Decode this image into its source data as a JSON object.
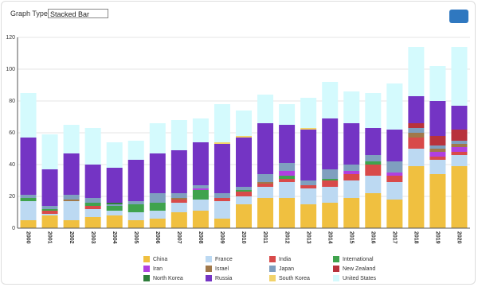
{
  "controls": {
    "graph_type_label": "Graph Type",
    "graph_type_value": "Stacked Bar"
  },
  "chart_data": {
    "type": "stacked_bar",
    "categories": [
      "2000",
      "2001",
      "2002",
      "2003",
      "2004",
      "2005",
      "2006",
      "2007",
      "2008",
      "2009",
      "2010",
      "2011",
      "2012",
      "2013",
      "2014",
      "2015",
      "2016",
      "2017",
      "2018",
      "2019",
      "2020"
    ],
    "series": [
      {
        "name": "China",
        "color": "#f0c040",
        "values": [
          5,
          8,
          5,
          7,
          8,
          5,
          6,
          10,
          11,
          6,
          15,
          19,
          19,
          15,
          16,
          19,
          22,
          18,
          39,
          34,
          39
        ]
      },
      {
        "name": "France",
        "color": "#bcd9f2",
        "values": [
          12,
          1,
          12,
          5,
          3,
          5,
          5,
          6,
          7,
          11,
          5,
          7,
          10,
          10,
          10,
          11,
          11,
          11,
          11,
          9,
          7
        ]
      },
      {
        "name": "India",
        "color": "#d84a4a",
        "values": [
          0,
          2,
          0,
          2,
          0,
          0,
          0,
          2,
          0,
          2,
          3,
          2,
          2,
          2,
          4,
          4,
          7,
          4,
          7,
          2,
          2
        ]
      },
      {
        "name": "International",
        "color": "#3fa34d",
        "values": [
          2,
          1,
          0,
          2,
          3,
          5,
          5,
          0,
          6,
          0,
          1,
          0,
          2,
          0,
          1,
          0,
          2,
          0,
          0,
          0,
          0
        ]
      },
      {
        "name": "Iran",
        "color": "#b040e0",
        "values": [
          0,
          0,
          0,
          0,
          0,
          0,
          0,
          0,
          1,
          0,
          0,
          0,
          3,
          0,
          0,
          2,
          0,
          2,
          0,
          3,
          3
        ]
      },
      {
        "name": "Israel",
        "color": "#a0784a",
        "values": [
          0,
          0,
          1,
          0,
          0,
          0,
          0,
          1,
          0,
          0,
          0,
          1,
          0,
          0,
          0,
          0,
          0,
          0,
          3,
          2,
          2
        ]
      },
      {
        "name": "Japan",
        "color": "#7f9fbf",
        "values": [
          2,
          2,
          3,
          3,
          1,
          2,
          6,
          3,
          2,
          3,
          2,
          5,
          5,
          3,
          6,
          4,
          4,
          7,
          3,
          2,
          2
        ]
      },
      {
        "name": "New Zealand",
        "color": "#b8323c",
        "values": [
          0,
          0,
          0,
          0,
          0,
          0,
          0,
          0,
          0,
          0,
          0,
          0,
          0,
          0,
          0,
          0,
          0,
          0,
          3,
          6,
          7
        ]
      },
      {
        "name": "North Korea",
        "color": "#2e7d3a",
        "values": [
          0,
          0,
          0,
          0,
          1,
          0,
          0,
          0,
          0,
          0,
          0,
          0,
          0,
          0,
          0,
          0,
          0,
          0,
          0,
          0,
          0
        ]
      },
      {
        "name": "Russia",
        "color": "#7434c4",
        "values": [
          36,
          23,
          26,
          21,
          22,
          26,
          25,
          27,
          27,
          31,
          31,
          32,
          24,
          32,
          32,
          26,
          17,
          20,
          17,
          22,
          15
        ]
      },
      {
        "name": "South Korea",
        "color": "#f2d36a",
        "values": [
          0,
          0,
          0,
          0,
          0,
          0,
          0,
          0,
          0,
          1,
          1,
          0,
          0,
          1,
          0,
          0,
          0,
          0,
          0,
          0,
          0
        ]
      },
      {
        "name": "United States",
        "color": "#d4fafd",
        "values": [
          28,
          22,
          18,
          23,
          16,
          12,
          19,
          19,
          15,
          24,
          16,
          18,
          13,
          19,
          23,
          20,
          22,
          29,
          31,
          22,
          37
        ]
      }
    ],
    "ylim": [
      0,
      120
    ],
    "yticks": [
      0,
      20,
      40,
      60,
      80,
      100,
      120
    ],
    "grid": true
  }
}
